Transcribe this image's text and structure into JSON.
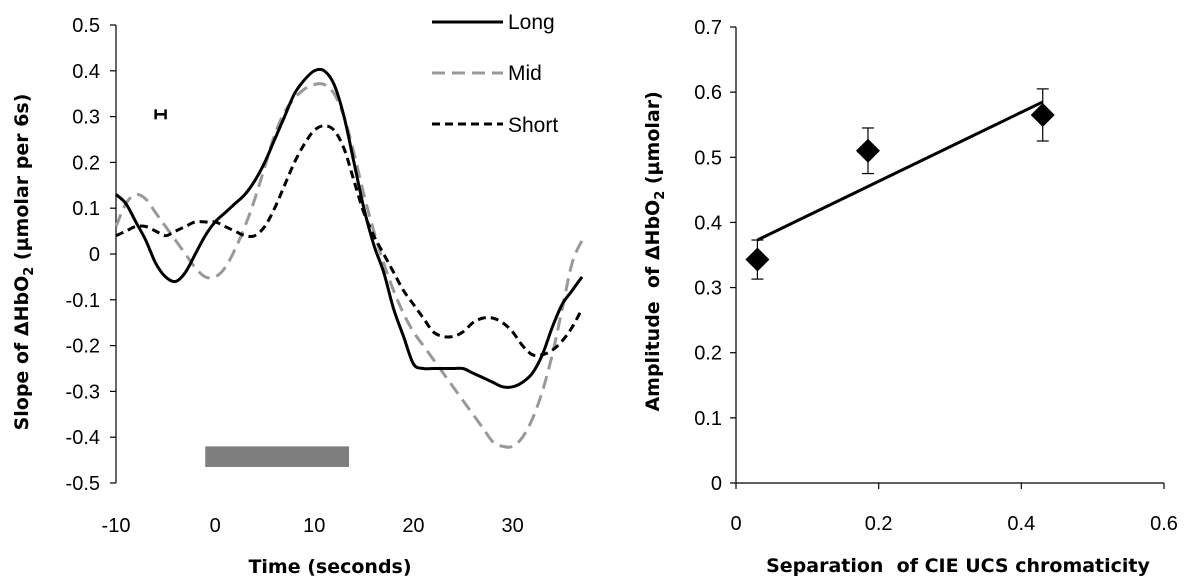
{
  "chart_data": [
    {
      "type": "line",
      "xlabel": "Time (seconds)",
      "ylabel": "Slope of ΔHbO",
      "ylabel_sub": "2",
      "ylabel_tail": " (µmolar per 6s)",
      "xlim": [
        -10,
        37
      ],
      "ylim": [
        -0.5,
        0.5
      ],
      "xticks": [
        -10,
        0,
        10,
        20,
        30
      ],
      "xtick_labels": [
        "-10",
        "0",
        "10",
        "20",
        "30"
      ],
      "yticks": [
        0.5,
        0.4,
        0.3,
        0.2,
        0.1,
        0,
        -0.1,
        -0.2,
        -0.3,
        -0.4,
        -0.5
      ],
      "ytick_labels": [
        "0.5",
        "0.4",
        "0.3",
        "0.2",
        "0.1",
        "0",
        "-0.1",
        "-0.2",
        "-0.3",
        "-0.4",
        "-0.5"
      ],
      "grid": false,
      "legend_position": "top-right",
      "stimulus_bar": {
        "x_start": -1,
        "x_end": 13.5,
        "y_top": -0.42,
        "y_bottom": -0.465,
        "color": "#7f7f7f"
      },
      "error_marker": {
        "x": -5.5,
        "x_halfwidth": 0.5,
        "y": 0.305
      },
      "series": [
        {
          "name": "Long",
          "style": "solid",
          "color": "#000000",
          "x": [
            -10,
            -9,
            -8,
            -7,
            -6,
            -5,
            -4,
            -3,
            -2,
            -1,
            0,
            1,
            2,
            3,
            4,
            5,
            6,
            7,
            8,
            9,
            10,
            11,
            12,
            13,
            14,
            15,
            16,
            17,
            18,
            19,
            20,
            21,
            22,
            23,
            24,
            25,
            26,
            27,
            28,
            29,
            30,
            31,
            32,
            33,
            34,
            35,
            36,
            37
          ],
          "y": [
            0.13,
            0.11,
            0.07,
            0.03,
            -0.02,
            -0.05,
            -0.06,
            -0.04,
            0.0,
            0.04,
            0.07,
            0.09,
            0.11,
            0.13,
            0.16,
            0.2,
            0.25,
            0.3,
            0.35,
            0.38,
            0.4,
            0.4,
            0.37,
            0.3,
            0.2,
            0.1,
            0.02,
            -0.04,
            -0.12,
            -0.18,
            -0.24,
            -0.25,
            -0.25,
            -0.25,
            -0.25,
            -0.25,
            -0.26,
            -0.27,
            -0.28,
            -0.29,
            -0.29,
            -0.28,
            -0.26,
            -0.22,
            -0.16,
            -0.11,
            -0.08,
            -0.05
          ]
        },
        {
          "name": "Mid",
          "style": "dashed",
          "color": "#999999",
          "x": [
            -10,
            -9,
            -8,
            -7,
            -6,
            -5,
            -4,
            -3,
            -2,
            -1,
            0,
            1,
            2,
            3,
            4,
            5,
            6,
            7,
            8,
            9,
            10,
            11,
            12,
            13,
            14,
            15,
            16,
            17,
            18,
            19,
            20,
            21,
            22,
            23,
            24,
            25,
            26,
            27,
            28,
            29,
            30,
            31,
            32,
            33,
            34,
            35,
            36,
            37
          ],
          "y": [
            0.06,
            0.11,
            0.13,
            0.12,
            0.09,
            0.06,
            0.03,
            0.0,
            -0.03,
            -0.05,
            -0.05,
            -0.03,
            0.01,
            0.06,
            0.12,
            0.19,
            0.26,
            0.31,
            0.34,
            0.36,
            0.37,
            0.37,
            0.35,
            0.3,
            0.22,
            0.13,
            0.05,
            -0.02,
            -0.08,
            -0.13,
            -0.17,
            -0.2,
            -0.23,
            -0.26,
            -0.29,
            -0.32,
            -0.35,
            -0.38,
            -0.41,
            -0.42,
            -0.42,
            -0.4,
            -0.36,
            -0.3,
            -0.22,
            -0.12,
            -0.02,
            0.03
          ]
        },
        {
          "name": "Short",
          "style": "dashed",
          "color": "#000000",
          "x": [
            -10,
            -9,
            -8,
            -7,
            -6,
            -5,
            -4,
            -3,
            -2,
            -1,
            0,
            1,
            2,
            3,
            4,
            5,
            6,
            7,
            8,
            9,
            10,
            11,
            12,
            13,
            14,
            15,
            16,
            17,
            18,
            19,
            20,
            21,
            22,
            23,
            24,
            25,
            26,
            27,
            28,
            29,
            30,
            31,
            32,
            33,
            34,
            35,
            36,
            37
          ],
          "y": [
            0.04,
            0.05,
            0.06,
            0.06,
            0.05,
            0.04,
            0.05,
            0.06,
            0.07,
            0.07,
            0.07,
            0.06,
            0.05,
            0.04,
            0.04,
            0.06,
            0.1,
            0.15,
            0.2,
            0.24,
            0.27,
            0.28,
            0.27,
            0.23,
            0.16,
            0.09,
            0.04,
            0.0,
            -0.04,
            -0.08,
            -0.11,
            -0.14,
            -0.17,
            -0.18,
            -0.18,
            -0.17,
            -0.15,
            -0.14,
            -0.14,
            -0.15,
            -0.17,
            -0.2,
            -0.22,
            -0.22,
            -0.21,
            -0.19,
            -0.16,
            -0.12
          ]
        }
      ]
    },
    {
      "type": "scatter",
      "xlabel": "Separation  of CIE UCS chromaticity",
      "ylabel": "Amplitude  of ΔHbO",
      "ylabel_sub": "2",
      "ylabel_tail": " (µmolar)",
      "xlim": [
        0,
        0.6
      ],
      "ylim": [
        0,
        0.7
      ],
      "xticks": [
        0,
        0.2,
        0.4,
        0.6
      ],
      "xtick_labels": [
        "0",
        "0.2",
        "0.4",
        "0.6"
      ],
      "yticks": [
        0.7,
        0.6,
        0.5,
        0.4,
        0.3,
        0.2,
        0.1,
        0
      ],
      "ytick_labels": [
        "0.7",
        "0.6",
        "0.5",
        "0.4",
        "0.3",
        "0.2",
        "0.1",
        "0"
      ],
      "grid": false,
      "marker": "diamond",
      "points": [
        {
          "x": 0.03,
          "y": 0.343,
          "err": 0.03
        },
        {
          "x": 0.185,
          "y": 0.51,
          "err": 0.035
        },
        {
          "x": 0.43,
          "y": 0.565,
          "err": 0.04
        }
      ],
      "trendline": {
        "x": [
          0.03,
          0.43
        ],
        "y": [
          0.373,
          0.585
        ]
      }
    }
  ]
}
